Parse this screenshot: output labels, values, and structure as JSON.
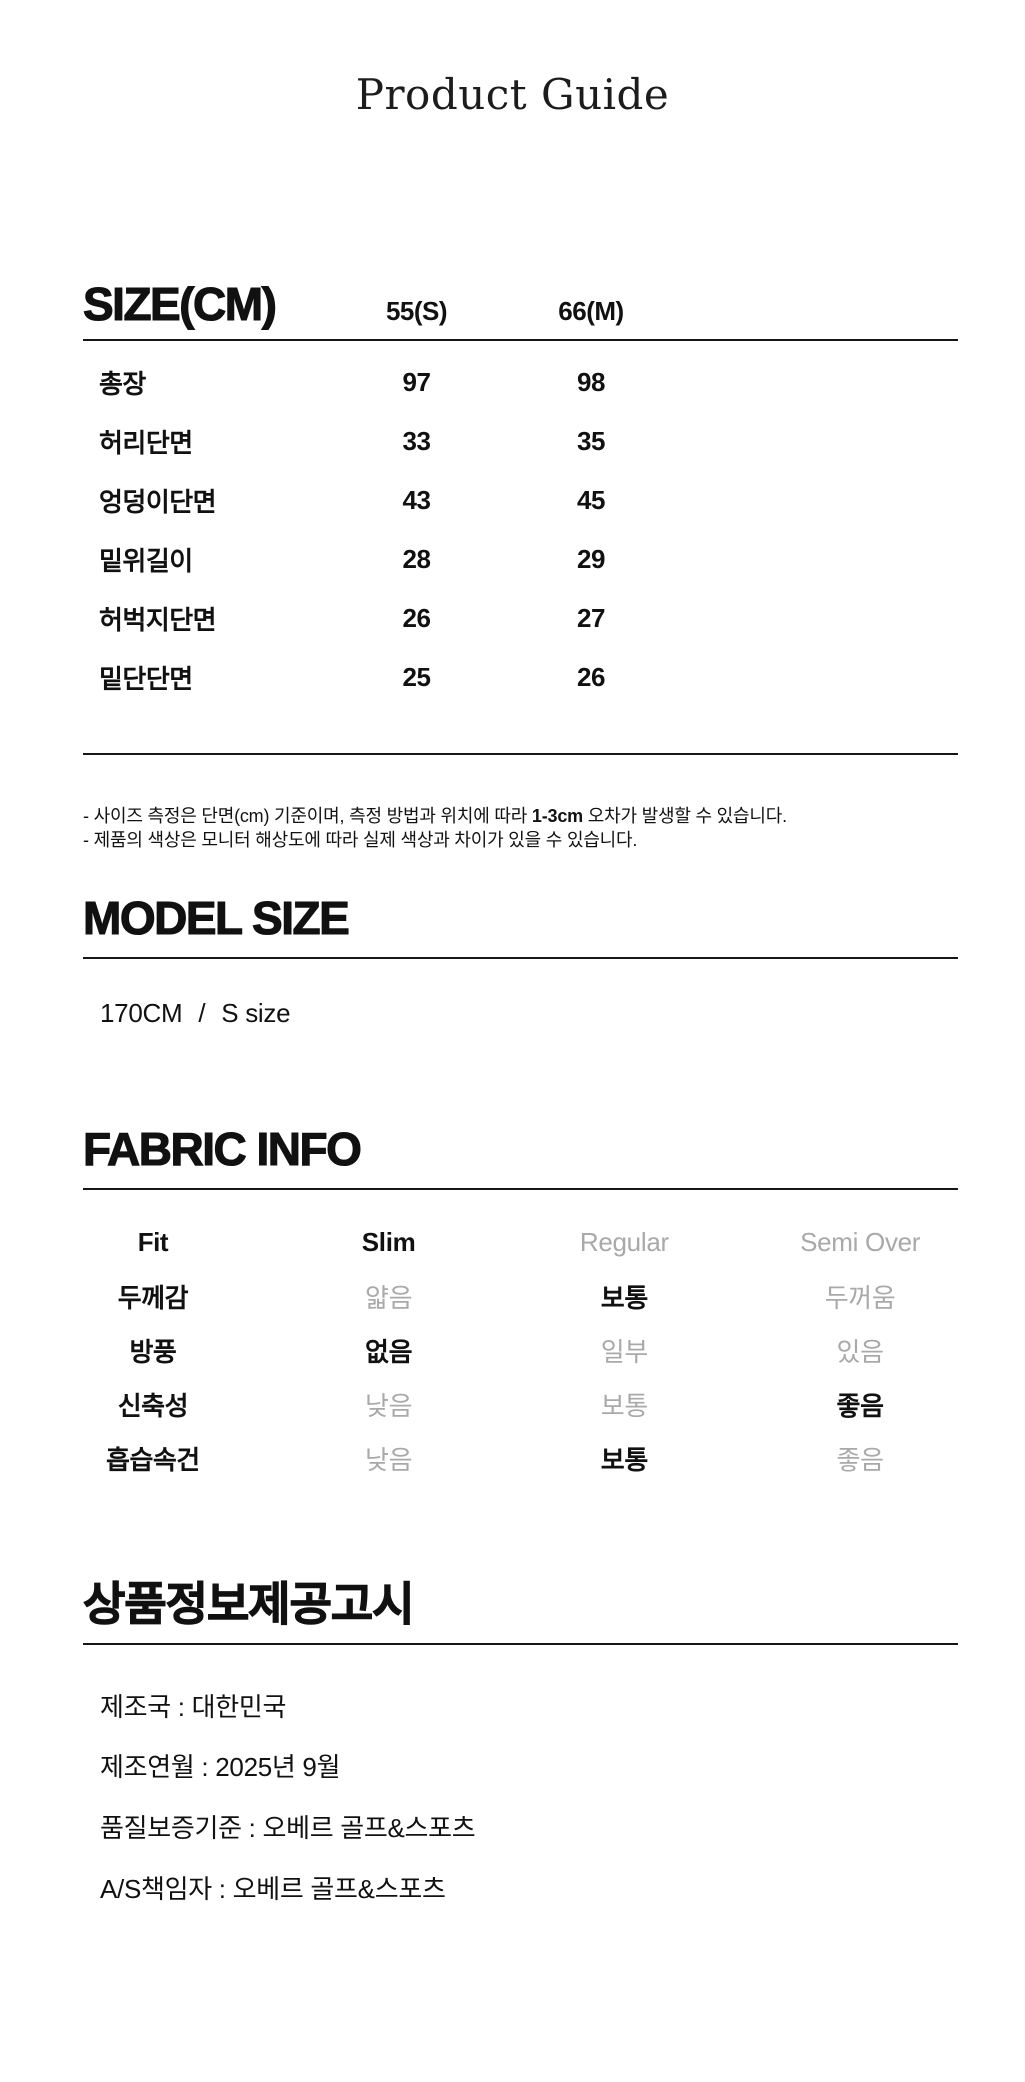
{
  "page": {
    "title": "Product Guide"
  },
  "colors": {
    "ink": "#111111",
    "muted": "#a9a9a9",
    "line": "#161616"
  },
  "size_section": {
    "heading": "SIZE(CM)",
    "columns": [
      "55(S)",
      "66(M)"
    ],
    "rows": [
      {
        "label": "총장",
        "values": [
          "97",
          "98"
        ]
      },
      {
        "label": "허리단면",
        "values": [
          "33",
          "35"
        ]
      },
      {
        "label": "엉덩이단면",
        "values": [
          "43",
          "45"
        ]
      },
      {
        "label": "밑위길이",
        "values": [
          "28",
          "29"
        ]
      },
      {
        "label": "허벅지단면",
        "values": [
          "26",
          "27"
        ]
      },
      {
        "label": "밑단단면",
        "values": [
          "25",
          "26"
        ]
      }
    ],
    "notes": {
      "line1_pre": "- 사이즈 측정은 단면(cm) 기준이며, 측정 방법과 위치에 따라 ",
      "line1_bold": "1-3cm",
      "line1_post": " 오차가 발생할 수 있습니다.",
      "line2": "- 제품의 색상은 모니터 해상도에 따라 실제 색상과 차이가 있을 수 있습니다."
    }
  },
  "model_section": {
    "heading": "MODEL SIZE",
    "height": "170CM",
    "separator": "/",
    "size": "S size"
  },
  "fabric_section": {
    "heading": "FABRIC INFO",
    "rows": [
      {
        "label": "Fit",
        "options": [
          "Slim",
          "Regular",
          "Semi Over"
        ],
        "selected": 0
      },
      {
        "label": "두께감",
        "options": [
          "얇음",
          "보통",
          "두꺼움"
        ],
        "selected": 1
      },
      {
        "label": "방풍",
        "options": [
          "없음",
          "일부",
          "있음"
        ],
        "selected": 0
      },
      {
        "label": "신축성",
        "options": [
          "낮음",
          "보통",
          "좋음"
        ],
        "selected": 2
      },
      {
        "label": "흡습속건",
        "options": [
          "낮음",
          "보통",
          "좋음"
        ],
        "selected": 1
      }
    ]
  },
  "info_section": {
    "heading": "상품정보제공고시",
    "items": [
      "제조국 : 대한민국",
      "제조연월 : 2025년 9월",
      "품질보증기준 : 오베르 골프&스포츠",
      "A/S책임자 : 오베르 골프&스포츠"
    ]
  }
}
